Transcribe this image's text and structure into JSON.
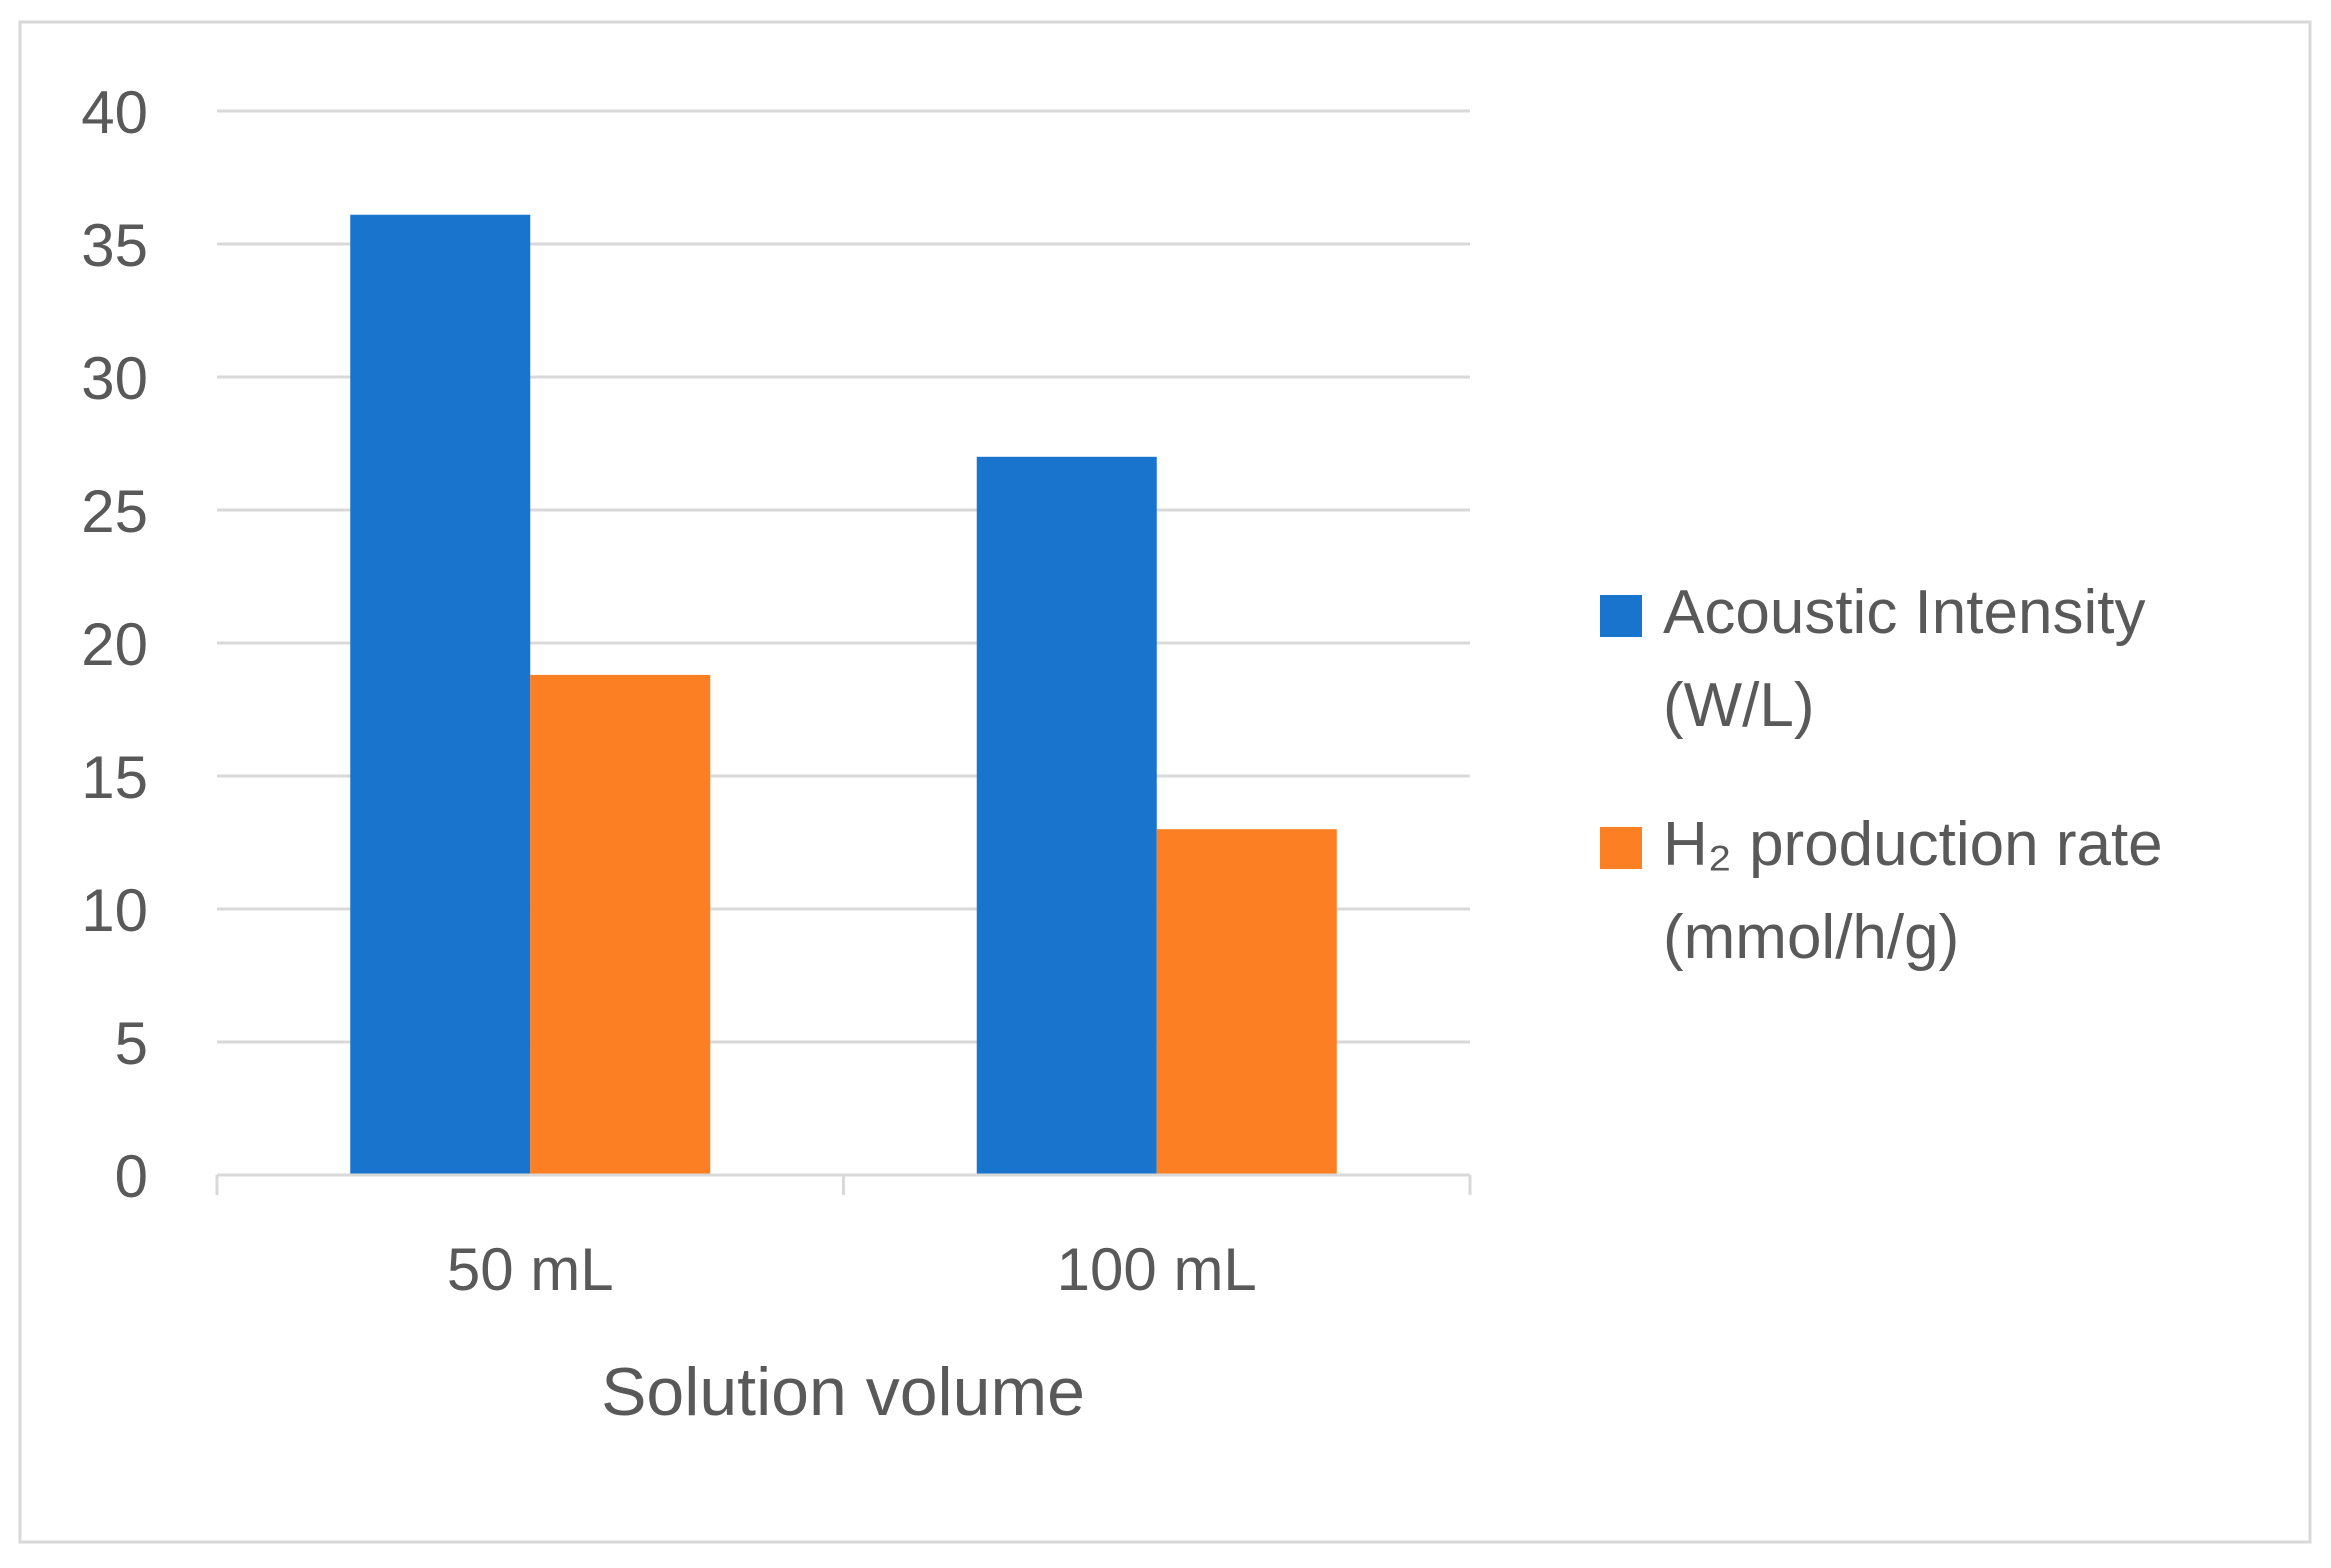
{
  "colors": {
    "background": "#ffffff",
    "frame": "#d9d9d9",
    "gridline": "#d9d9d9",
    "axis_line": "#d9d9d9",
    "text": "#595959"
  },
  "chart_data": {
    "type": "bar",
    "title": "",
    "xlabel": "Solution volume",
    "ylabel": "",
    "categories": [
      "50 mL",
      "100 mL"
    ],
    "ylim": [
      0,
      40
    ],
    "ytick_step": 5,
    "yticks": [
      "0",
      "5",
      "10",
      "15",
      "20",
      "25",
      "30",
      "35",
      "40"
    ],
    "grid": true,
    "legend_position": "right",
    "series": [
      {
        "name": "Acoustic Intensity (W/L)",
        "legend_lines": [
          "Acoustic Intensity",
          "(W/L)"
        ],
        "values": [
          36.1,
          27.0
        ],
        "color": "#1874cd"
      },
      {
        "name": "H₂ production rate (mmol/h/g)",
        "legend_lines": [
          "H₂ production rate",
          "(mmol/h/g)"
        ],
        "values": [
          18.8,
          13.0
        ],
        "color": "#fd7f23"
      }
    ]
  }
}
